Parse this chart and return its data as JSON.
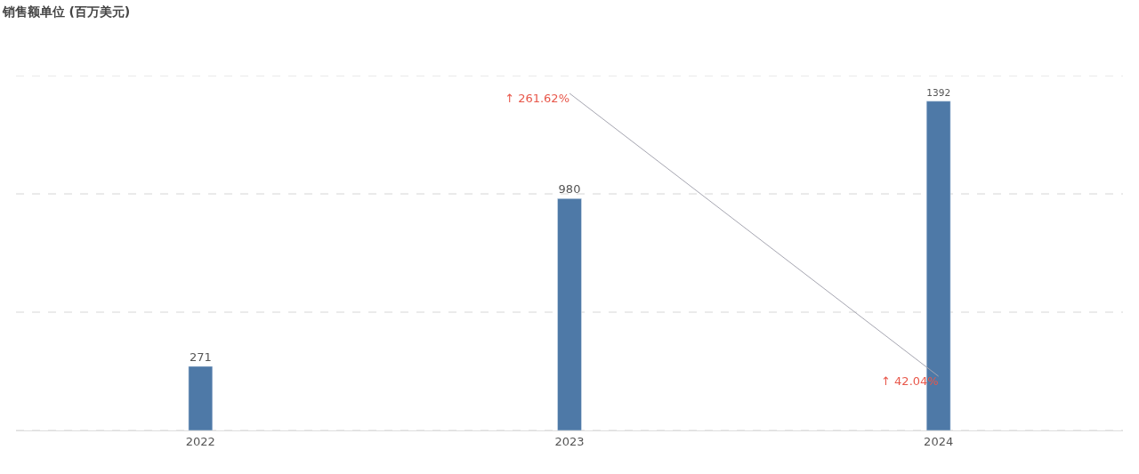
{
  "chart_data": {
    "type": "bar",
    "title": "销售额单位 (百万美元)",
    "categories": [
      "2022",
      "2023",
      "2024"
    ],
    "series": [
      {
        "color": "#4e79a7",
        "values": [
          271,
          980,
          1392
        ],
        "value_labels": [
          "271",
          "980",
          "1392"
        ]
      },
      {
        "type": "line",
        "axis": "y2",
        "color": "#a5a5b0",
        "values": [
          null,
          261.62,
          42.04
        ],
        "value_labels": [
          null,
          "↑ 261.62%",
          "↑ 42.04%"
        ]
      }
    ],
    "ylim": [
      0,
      1500
    ],
    "yticks": [
      {
        "value": 0,
        "label": null
      },
      {
        "value": 500,
        "label": null
      },
      {
        "value": 1000,
        "label": null
      },
      {
        "value": 1500,
        "label": null
      }
    ],
    "grid": "y",
    "tick_labels": "x",
    "marker": "none"
  }
}
